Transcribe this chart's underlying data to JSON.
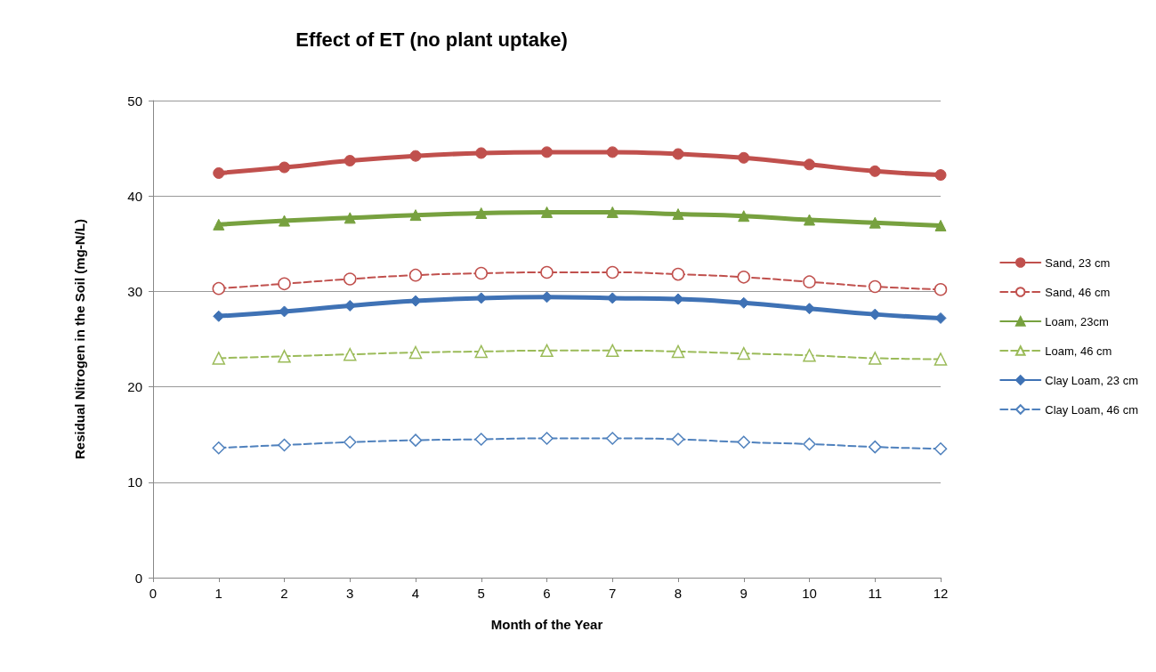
{
  "chart_data": {
    "type": "line",
    "title": "Effect of ET (no plant uptake)",
    "xlabel": "Month of the Year",
    "ylabel": "Residual Nitrogen in the Soil (mg-N/L)",
    "x": [
      1,
      2,
      3,
      4,
      5,
      6,
      7,
      8,
      9,
      10,
      11,
      12
    ],
    "xlim": [
      0,
      12
    ],
    "xticks": [
      0,
      1,
      2,
      3,
      4,
      5,
      6,
      7,
      8,
      9,
      10,
      11,
      12
    ],
    "ylim": [
      0,
      50
    ],
    "yticks": [
      0,
      10,
      20,
      30,
      40,
      50
    ],
    "grid": "y",
    "legend": "right",
    "series": [
      {
        "name": "Sand, 23 cm",
        "color": "#c0504d",
        "marker": "circle",
        "line_style": "solid",
        "values": [
          42.4,
          43.0,
          43.7,
          44.2,
          44.5,
          44.6,
          44.6,
          44.4,
          44.0,
          43.3,
          42.6,
          42.2
        ]
      },
      {
        "name": "Sand, 46 cm",
        "color": "#c0504d",
        "marker": "circle",
        "line_style": "dashed",
        "values": [
          30.3,
          30.8,
          31.3,
          31.7,
          31.9,
          32.0,
          32.0,
          31.8,
          31.5,
          31.0,
          30.5,
          30.2
        ]
      },
      {
        "name": "Loam, 23cm",
        "color": "#77a13f",
        "marker": "triangle",
        "line_style": "solid",
        "values": [
          37.0,
          37.4,
          37.7,
          38.0,
          38.2,
          38.3,
          38.3,
          38.1,
          37.9,
          37.5,
          37.2,
          36.9
        ]
      },
      {
        "name": "Loam, 46 cm",
        "color": "#9bbb59",
        "marker": "triangle",
        "line_style": "dashed",
        "values": [
          23.0,
          23.2,
          23.4,
          23.6,
          23.7,
          23.8,
          23.8,
          23.7,
          23.5,
          23.3,
          23.0,
          22.9
        ]
      },
      {
        "name": "Clay Loam, 23 cm",
        "color": "#3f72b5",
        "marker": "diamond",
        "line_style": "solid",
        "values": [
          27.4,
          27.9,
          28.5,
          29.0,
          29.3,
          29.4,
          29.3,
          29.2,
          28.8,
          28.2,
          27.6,
          27.2
        ]
      },
      {
        "name": "Clay Loam, 46 cm",
        "color": "#4f81bd",
        "marker": "diamond",
        "line_style": "dashed",
        "values": [
          13.6,
          13.9,
          14.2,
          14.4,
          14.5,
          14.6,
          14.6,
          14.5,
          14.2,
          14.0,
          13.7,
          13.5
        ]
      }
    ]
  }
}
